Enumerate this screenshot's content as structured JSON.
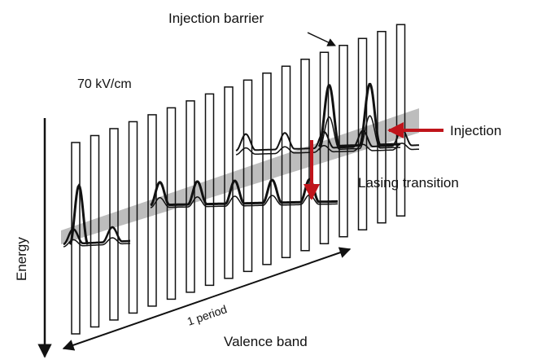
{
  "labels": {
    "injection_barrier": "Injection barrier",
    "field": "70 kV/cm",
    "injection": "Injection",
    "lasing_transition": "Lasing transition",
    "energy": "Energy",
    "period": "1 period",
    "valence_band": "Valence band"
  }
}
